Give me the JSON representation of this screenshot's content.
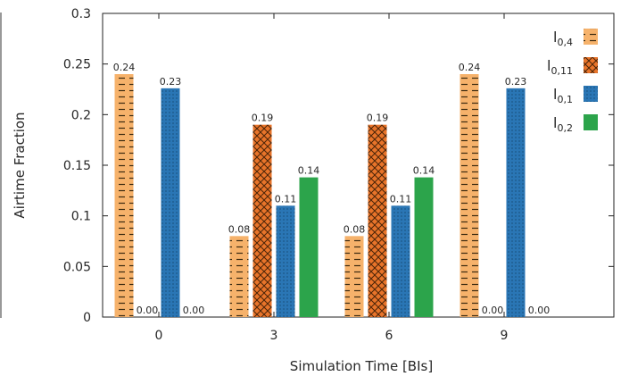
{
  "chart_data": {
    "type": "bar",
    "title": "",
    "xlabel": "Simulation Time [BIs]",
    "ylabel": "Airtime Fraction",
    "ylim": [
      0,
      0.3
    ],
    "yticks": [
      "0",
      "0.05",
      "0.1",
      "0.15",
      "0.2",
      "0.25",
      "0.3"
    ],
    "categories": [
      "0",
      "3",
      "6",
      "9"
    ],
    "legend_position": "top-right",
    "grid": false,
    "series": [
      {
        "name": "l0,4",
        "base": "l",
        "sub": "0,4",
        "color": "#f6b26b",
        "pattern": "dashes",
        "values": [
          0.24,
          0.08,
          0.08,
          0.24
        ],
        "labels": [
          "0.24",
          "0.08",
          "0.08",
          "0.24"
        ]
      },
      {
        "name": "l0,11",
        "base": "l",
        "sub": "0,11",
        "color": "#e8742a",
        "pattern": "crosshatch",
        "values": [
          0.0,
          0.19,
          0.19,
          0.0
        ],
        "labels": [
          "0.00",
          "0.19",
          "0.19",
          "0.00"
        ]
      },
      {
        "name": "l0,1",
        "base": "l",
        "sub": "0,1",
        "color": "#2a76b5",
        "pattern": "dots",
        "values": [
          0.226,
          0.11,
          0.11,
          0.226
        ],
        "labels": [
          "0.23",
          "0.11",
          "0.11",
          "0.23"
        ]
      },
      {
        "name": "l0,2",
        "base": "l",
        "sub": "0,2",
        "color": "#2ca44b",
        "pattern": "solid",
        "values": [
          0.0,
          0.138,
          0.138,
          0.0
        ],
        "labels": [
          "0.00",
          "0.14",
          "0.14",
          "0.00"
        ]
      }
    ]
  }
}
